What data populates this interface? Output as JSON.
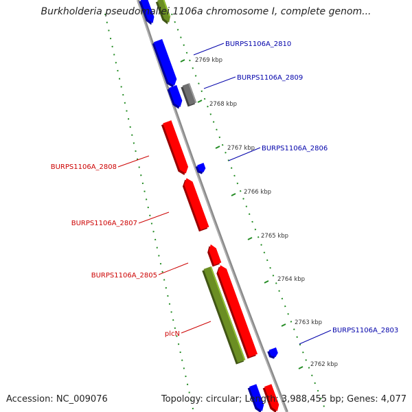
{
  "title": "Burkholderia pseudomallei 1106a chromosome I, complete genom...",
  "footer": {
    "accession": "Accession: NC_009076",
    "topology": "Topology: circular; Length: 3,988,455 bp; Genes: 4,077"
  },
  "colors": {
    "red": "#ff0000",
    "blue": "#0000ff",
    "green": "#6b8e23",
    "gray": "#707070",
    "backbone": "#8a8a8a",
    "ruler": "#228b22",
    "label_red": "#cc0000",
    "label_blue": "#0000aa"
  },
  "ruler_labels": [
    "2769 kbp",
    "2768 kbp",
    "2767 kbp",
    "2766 kbp",
    "2765 kbp",
    "2764 kbp",
    "2763 kbp",
    "2762 kbp"
  ],
  "gene_labels": [
    {
      "text": "BURPS1106A_2810",
      "color": "blue"
    },
    {
      "text": "BURPS1106A_2809",
      "color": "blue"
    },
    {
      "text": "BURPS1106A_2806",
      "color": "blue"
    },
    {
      "text": "BURPS1106A_2808",
      "color": "red"
    },
    {
      "text": "BURPS1106A_2807",
      "color": "red"
    },
    {
      "text": "BURPS1106A_2805",
      "color": "red"
    },
    {
      "text": "plcN",
      "color": "red"
    },
    {
      "text": "BURPS1106A_2803",
      "color": "blue"
    }
  ],
  "genes": [
    {
      "name": "gene-green-top",
      "color": "green"
    },
    {
      "name": "gene-blue-top",
      "color": "blue"
    },
    {
      "name": "gene-burps1106a-2810",
      "color": "blue"
    },
    {
      "name": "gene-burps1106a-2809",
      "color": "blue"
    },
    {
      "name": "gene-gray-2809",
      "color": "gray"
    },
    {
      "name": "gene-burps1106a-2808",
      "color": "red"
    },
    {
      "name": "gene-burps1106a-2806",
      "color": "blue"
    },
    {
      "name": "gene-burps1106a-2807",
      "color": "red"
    },
    {
      "name": "gene-small-red",
      "color": "red"
    },
    {
      "name": "gene-burps1106a-2805",
      "color": "red"
    },
    {
      "name": "gene-plcn",
      "color": "green"
    },
    {
      "name": "gene-burps1106a-2803",
      "color": "blue"
    },
    {
      "name": "gene-blue-bottom",
      "color": "blue"
    },
    {
      "name": "gene-red-bottom",
      "color": "red"
    }
  ]
}
